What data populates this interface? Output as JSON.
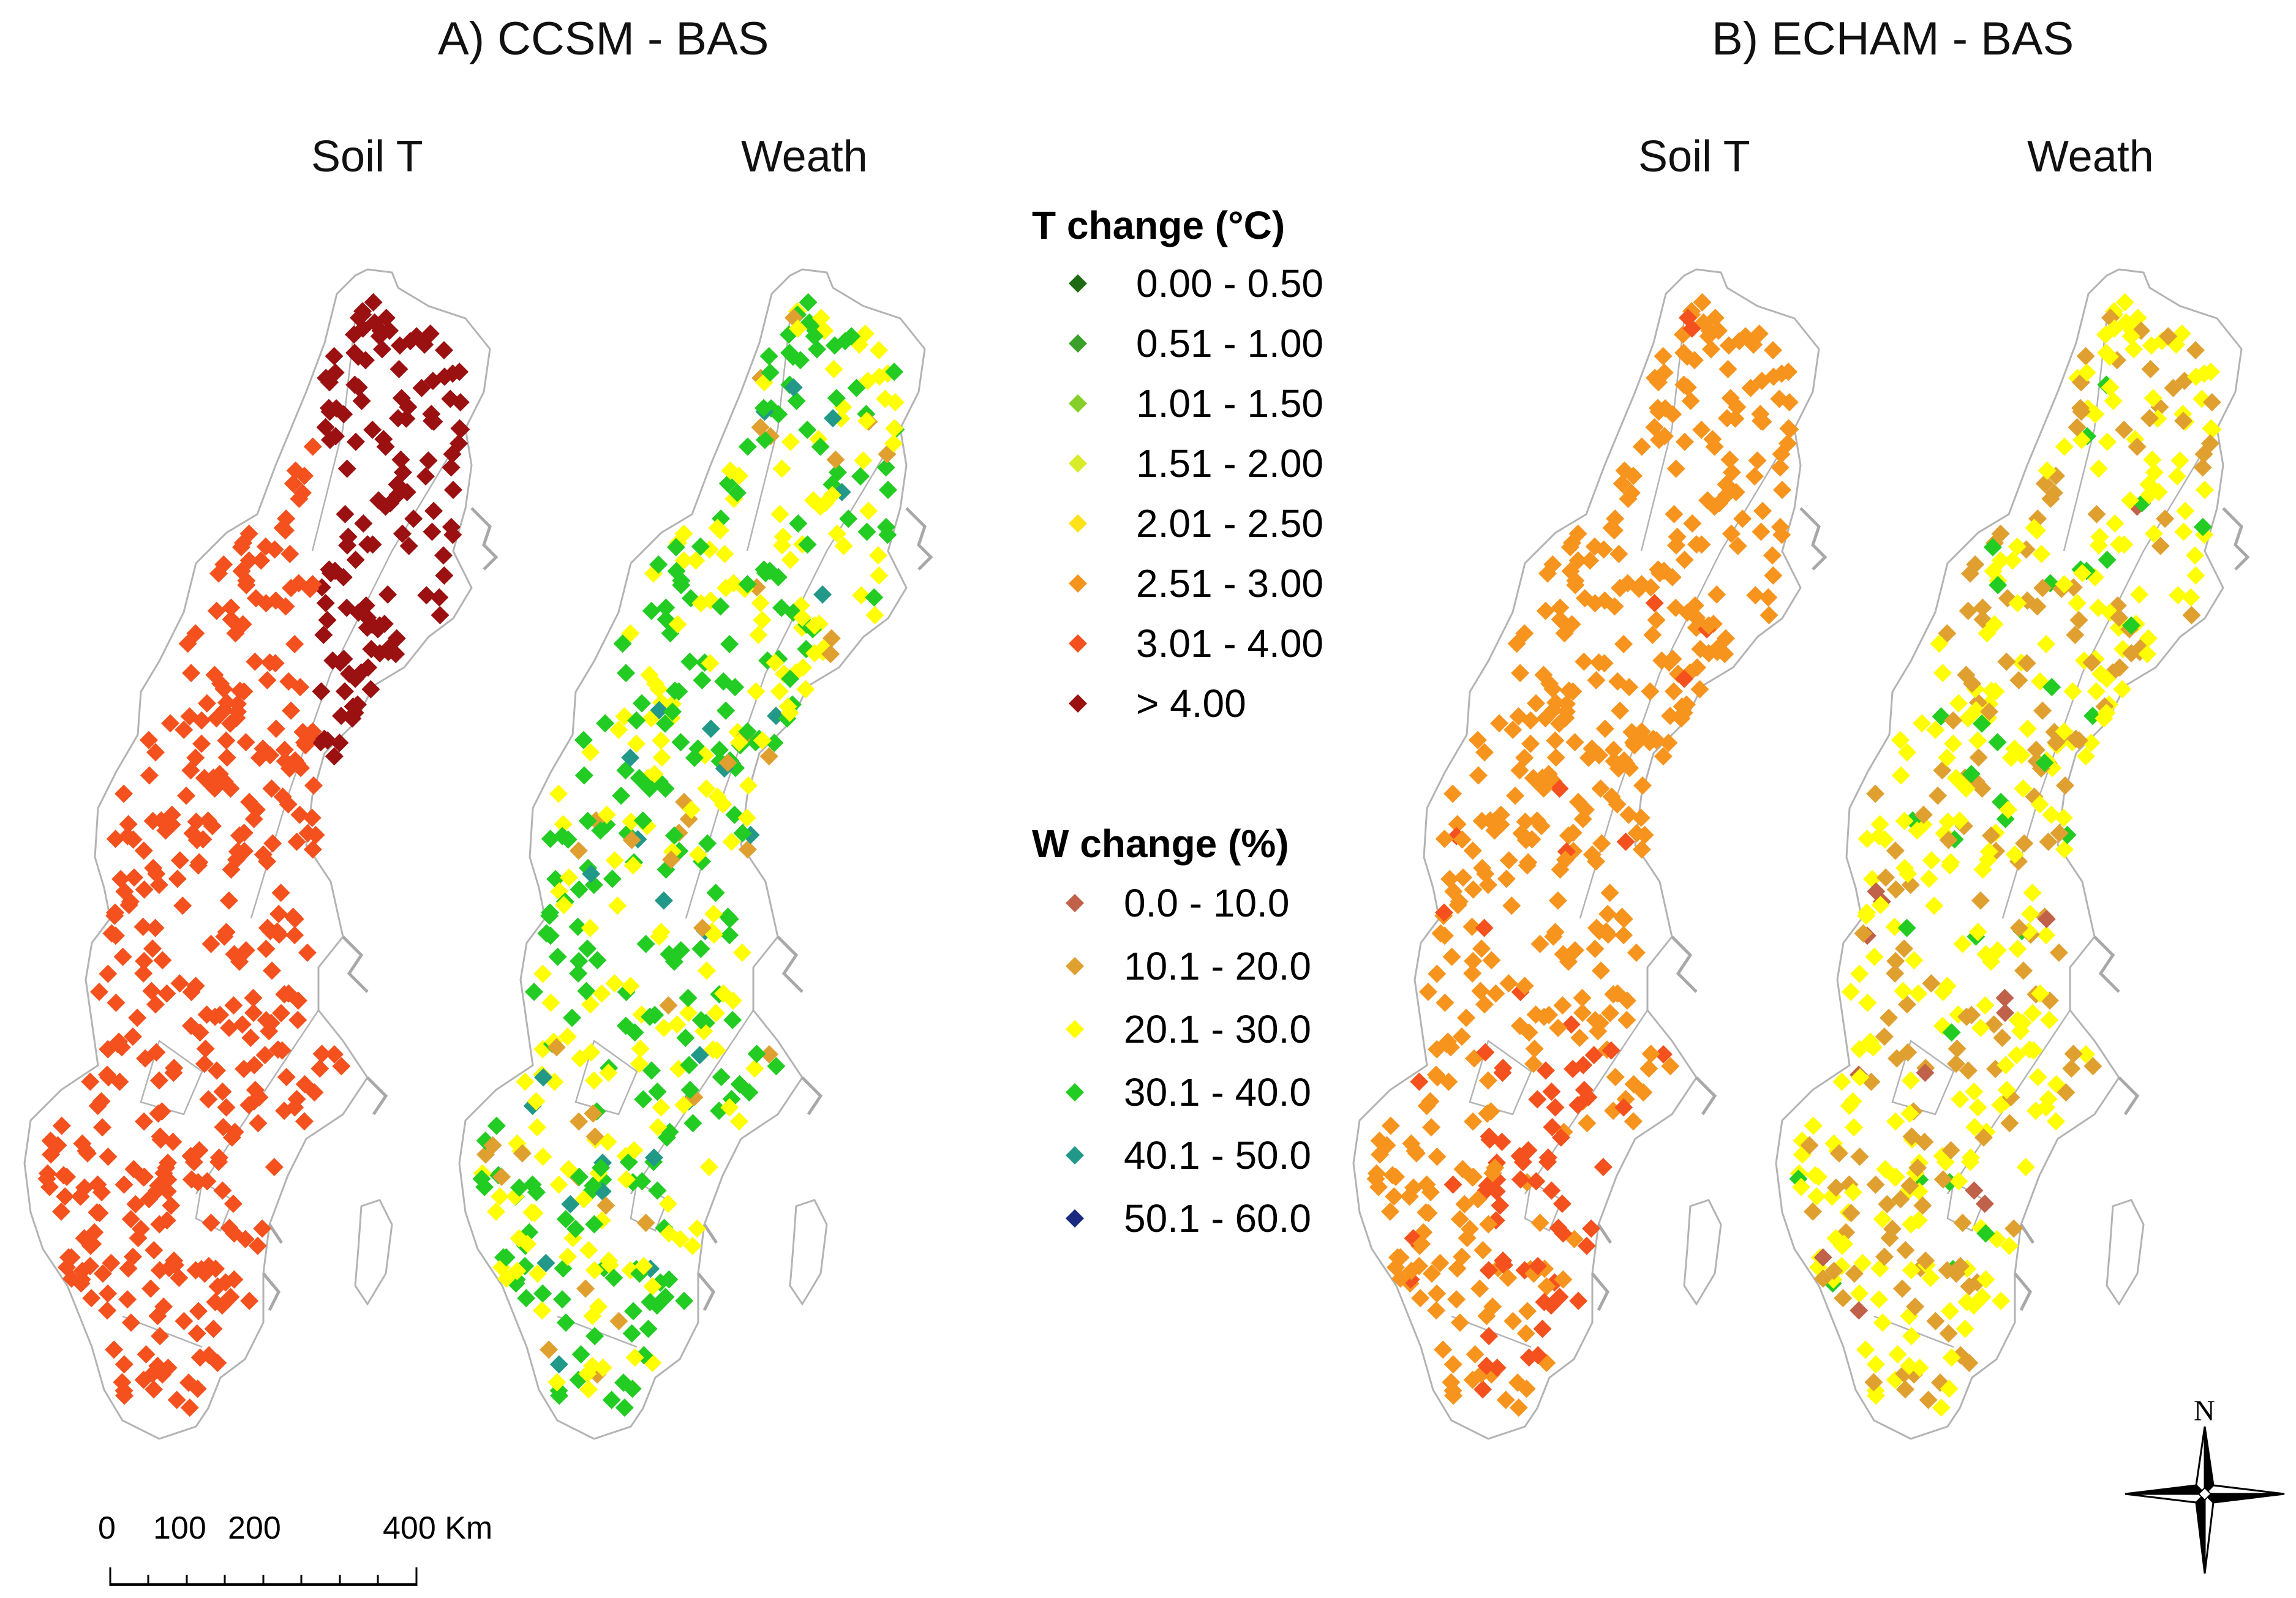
{
  "panels": {
    "a": {
      "title": "A) CCSM - BAS",
      "soil_title": "Soil T",
      "weath_title": "Weath"
    },
    "b": {
      "title": "B) ECHAM - BAS",
      "soil_title": "Soil T",
      "weath_title": "Weath"
    }
  },
  "legend_t": {
    "title": "T change (°C)",
    "items": [
      {
        "label": "0.00 - 0.50",
        "color": "#1e6b12"
      },
      {
        "label": "0.51 - 1.00",
        "color": "#3aa02a"
      },
      {
        "label": "1.01 - 1.50",
        "color": "#86cf2a"
      },
      {
        "label": "1.51 - 2.00",
        "color": "#d8ec2a"
      },
      {
        "label": "2.01 - 2.50",
        "color": "#ffe21a"
      },
      {
        "label": "2.51 - 3.00",
        "color": "#f7941d"
      },
      {
        "label": "3.01 - 4.00",
        "color": "#f4511e"
      },
      {
        "label": "> 4.00",
        "color": "#9b1010"
      }
    ]
  },
  "legend_w": {
    "title": "W change (%)",
    "items": [
      {
        "label": "0.0 - 10.0",
        "color": "#c0614a"
      },
      {
        "label": "10.1 - 20.0",
        "color": "#e0a030"
      },
      {
        "label": "20.1 - 30.0",
        "color": "#ffff00"
      },
      {
        "label": "30.1 - 40.0",
        "color": "#22cc22"
      },
      {
        "label": "40.1 - 50.0",
        "color": "#229988"
      },
      {
        "label": "50.1 - 60.0",
        "color": "#1a2a80"
      }
    ]
  },
  "scale_bar": {
    "labels": [
      "0",
      "100",
      "200",
      "400 Km"
    ]
  },
  "north_arrow": {
    "label": "N"
  },
  "map_colors": {
    "outline": "#b3b3b3",
    "coast": "#a8a8a8"
  }
}
